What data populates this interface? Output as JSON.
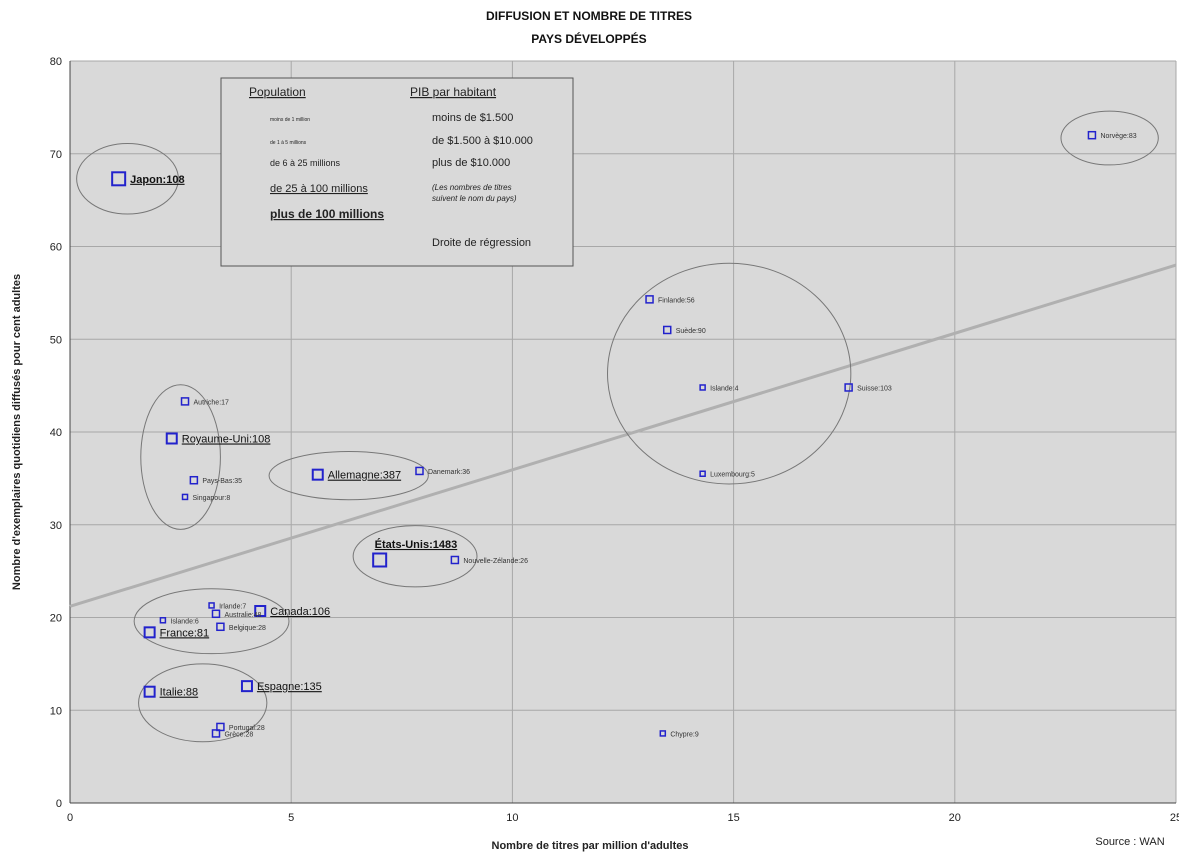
{
  "chart_data": {
    "type": "scatter",
    "title": "DIFFUSION ET NOMBRE DE TITRES",
    "subtitle": "PAYS DÉVELOPPÉS",
    "xlabel": "Nombre de titres par million d'adultes",
    "ylabel": "Nombre d'exemplaires quotidiens diffusés pour cent adultes",
    "xlim": [
      0,
      25
    ],
    "ylim": [
      0,
      80
    ],
    "xticks": [
      "0",
      "5",
      "10",
      "15",
      "20",
      "25"
    ],
    "yticks": [
      "0",
      "10",
      "20",
      "30",
      "40",
      "50",
      "60",
      "70",
      "80"
    ],
    "grid": true,
    "source": "Source : WAN",
    "points": [
      {
        "label": "Japon:108",
        "x": 1.1,
        "y": 67.3,
        "size": "xl"
      },
      {
        "label": "Norvège:83",
        "x": 23.1,
        "y": 72.0,
        "size": "s"
      },
      {
        "label": "Finlande:56",
        "x": 13.1,
        "y": 54.3,
        "size": "s"
      },
      {
        "label": "Suède:90",
        "x": 13.5,
        "y": 51.0,
        "size": "s"
      },
      {
        "label": "Islande:4",
        "x": 14.3,
        "y": 44.8,
        "size": "xs"
      },
      {
        "label": "Suisse:103",
        "x": 17.6,
        "y": 44.8,
        "size": "s"
      },
      {
        "label": "Luxembourg:5",
        "x": 14.3,
        "y": 35.5,
        "size": "xs"
      },
      {
        "label": "Autriche:17",
        "x": 2.6,
        "y": 43.3,
        "size": "s"
      },
      {
        "label": "Royaume-Uni:108",
        "x": 2.3,
        "y": 39.3,
        "size": "l"
      },
      {
        "label": "Pays-Bas:35",
        "x": 2.8,
        "y": 34.8,
        "size": "s"
      },
      {
        "label": "Singapour:8",
        "x": 2.6,
        "y": 33.0,
        "size": "xs"
      },
      {
        "label": "Allemagne:387",
        "x": 5.6,
        "y": 35.4,
        "size": "l"
      },
      {
        "label": "Danemark:36",
        "x": 7.9,
        "y": 35.8,
        "size": "s"
      },
      {
        "label": "États-Unis:1483",
        "x": 7.0,
        "y": 26.2,
        "size": "xl"
      },
      {
        "label": "Nouvelle-Zélande:26",
        "x": 8.7,
        "y": 26.2,
        "size": "s"
      },
      {
        "label": "Canada:106",
        "x": 4.3,
        "y": 20.7,
        "size": "l"
      },
      {
        "label": "Irlande:7",
        "x": 3.2,
        "y": 21.3,
        "size": "xs"
      },
      {
        "label": "Australie:48",
        "x": 3.3,
        "y": 20.4,
        "size": "s"
      },
      {
        "label": "Islande:6",
        "x": 2.1,
        "y": 19.7,
        "size": "xs"
      },
      {
        "label": "Belgique:28",
        "x": 3.4,
        "y": 19.0,
        "size": "s"
      },
      {
        "label": "France:81",
        "x": 1.8,
        "y": 18.4,
        "size": "l"
      },
      {
        "label": "Italie:88",
        "x": 1.8,
        "y": 12.0,
        "size": "l"
      },
      {
        "label": "Espagne:135",
        "x": 4.0,
        "y": 12.6,
        "size": "l"
      },
      {
        "label": "Portugal:28",
        "x": 3.4,
        "y": 8.2,
        "size": "s"
      },
      {
        "label": "Grèce:28",
        "x": 3.3,
        "y": 7.5,
        "size": "s"
      },
      {
        "label": "Chypre:9",
        "x": 13.4,
        "y": 7.5,
        "size": "xs"
      }
    ],
    "regression": {
      "x": [
        0,
        25
      ],
      "y": [
        21.2,
        58.0
      ]
    },
    "groups": [
      {
        "cx": 1.3,
        "cy": 67.3,
        "rx": 1.15,
        "ry": 3.8
      },
      {
        "cx": 23.5,
        "cy": 71.7,
        "rx": 1.1,
        "ry": 2.9
      },
      {
        "cx": 14.9,
        "cy": 46.3,
        "rx": 2.75,
        "ry": 11.9
      },
      {
        "cx": 2.5,
        "cy": 37.3,
        "rx": 0.9,
        "ry": 7.8
      },
      {
        "cx": 6.3,
        "cy": 35.3,
        "rx": 1.8,
        "ry": 2.6
      },
      {
        "cx": 7.8,
        "cy": 26.6,
        "rx": 1.4,
        "ry": 3.3
      },
      {
        "cx": 3.2,
        "cy": 19.6,
        "rx": 1.75,
        "ry": 3.5
      },
      {
        "cx": 3.0,
        "cy": 10.8,
        "rx": 1.45,
        "ry": 4.2
      }
    ],
    "legend": {
      "placement": "top-left",
      "population_header": "Population",
      "population_items": [
        {
          "text": "moins de 1 million",
          "size": "xs"
        },
        {
          "text": "de 1 à 5 millions",
          "size": "xs"
        },
        {
          "text": "de 6 à 25 millions",
          "size": "s"
        },
        {
          "text": "de 25 à 100 millions",
          "size": "l"
        },
        {
          "text": "plus de 100 millions",
          "size": "xl"
        }
      ],
      "pib_header": "PIB par habitant",
      "pib_items": [
        "moins de $1.500",
        "de $1.500 à $10.000",
        "plus de $10.000"
      ],
      "note_line1": "(Les nombres de titres",
      "note_line2": "suivent le nom du pays)",
      "regression_label": "Droite de régression"
    },
    "colors": {
      "plot_bg": "#d9d9d9",
      "grid": "#a8a8a8",
      "marker": "#2222cc",
      "regression": "#b0b0b0",
      "ellipse": "#777777"
    }
  }
}
